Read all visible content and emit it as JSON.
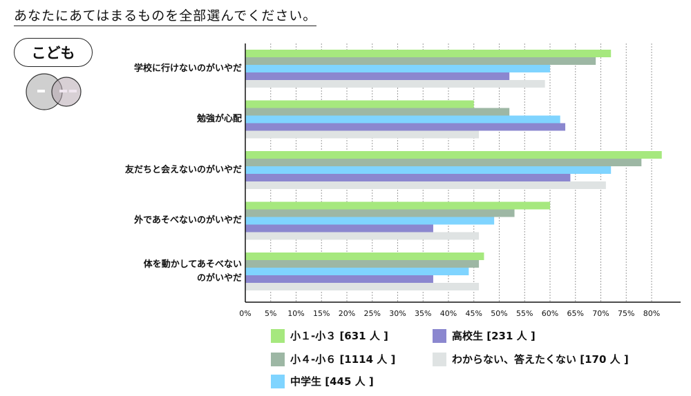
{
  "question": "あなたにあてはまるものを全部選んでください。",
  "badge": "こども",
  "colors": {
    "s1": "#a6e87e",
    "s2": "#9db7a4",
    "s3": "#7fd4ff",
    "s4": "#8b87cf",
    "s5": "#dfe3e3"
  },
  "chart_data": {
    "type": "bar",
    "orientation": "horizontal",
    "categories": [
      "学校に行けないのがいやだ",
      "勉強が心配",
      "友だちと会えないのがいやだ",
      "外であそべないのがいやだ",
      "体を動かしてあそべないのがいやだ"
    ],
    "category_lines": [
      [
        "学校に行けないのがいやだ"
      ],
      [
        "勉強が心配"
      ],
      [
        "友だちと会えないのがいやだ"
      ],
      [
        "外であそべないのがいやだ"
      ],
      [
        "体を動かしてあそべない",
        "のがいやだ"
      ]
    ],
    "series": [
      {
        "name": "小１-小３ [631 人 ]",
        "values": [
          72,
          45,
          82,
          60,
          47
        ]
      },
      {
        "name": "小４-小６ [1114 人 ]",
        "values": [
          69,
          52,
          78,
          53,
          46
        ]
      },
      {
        "name": "中学生 [445 人 ]",
        "values": [
          60,
          62,
          72,
          49,
          44
        ]
      },
      {
        "name": "高校生 [231 人 ]",
        "values": [
          52,
          63,
          64,
          37,
          37
        ]
      },
      {
        "name": "わからない、答えたくない [170 人 ]",
        "values": [
          59,
          46,
          71,
          46,
          46
        ]
      }
    ],
    "xlim": [
      0,
      85
    ],
    "xticks": [
      0,
      5,
      10,
      15,
      20,
      25,
      30,
      35,
      40,
      45,
      50,
      55,
      60,
      65,
      70,
      75,
      80
    ],
    "xtick_labels": [
      "0%",
      "5%",
      "10%",
      "15%",
      "20%",
      "25%",
      "30%",
      "35%",
      "40%",
      "45%",
      "50%",
      "55%",
      "60%",
      "65%",
      "70%",
      "75%",
      "80%"
    ],
    "grid": true,
    "legend_position": "bottom"
  }
}
